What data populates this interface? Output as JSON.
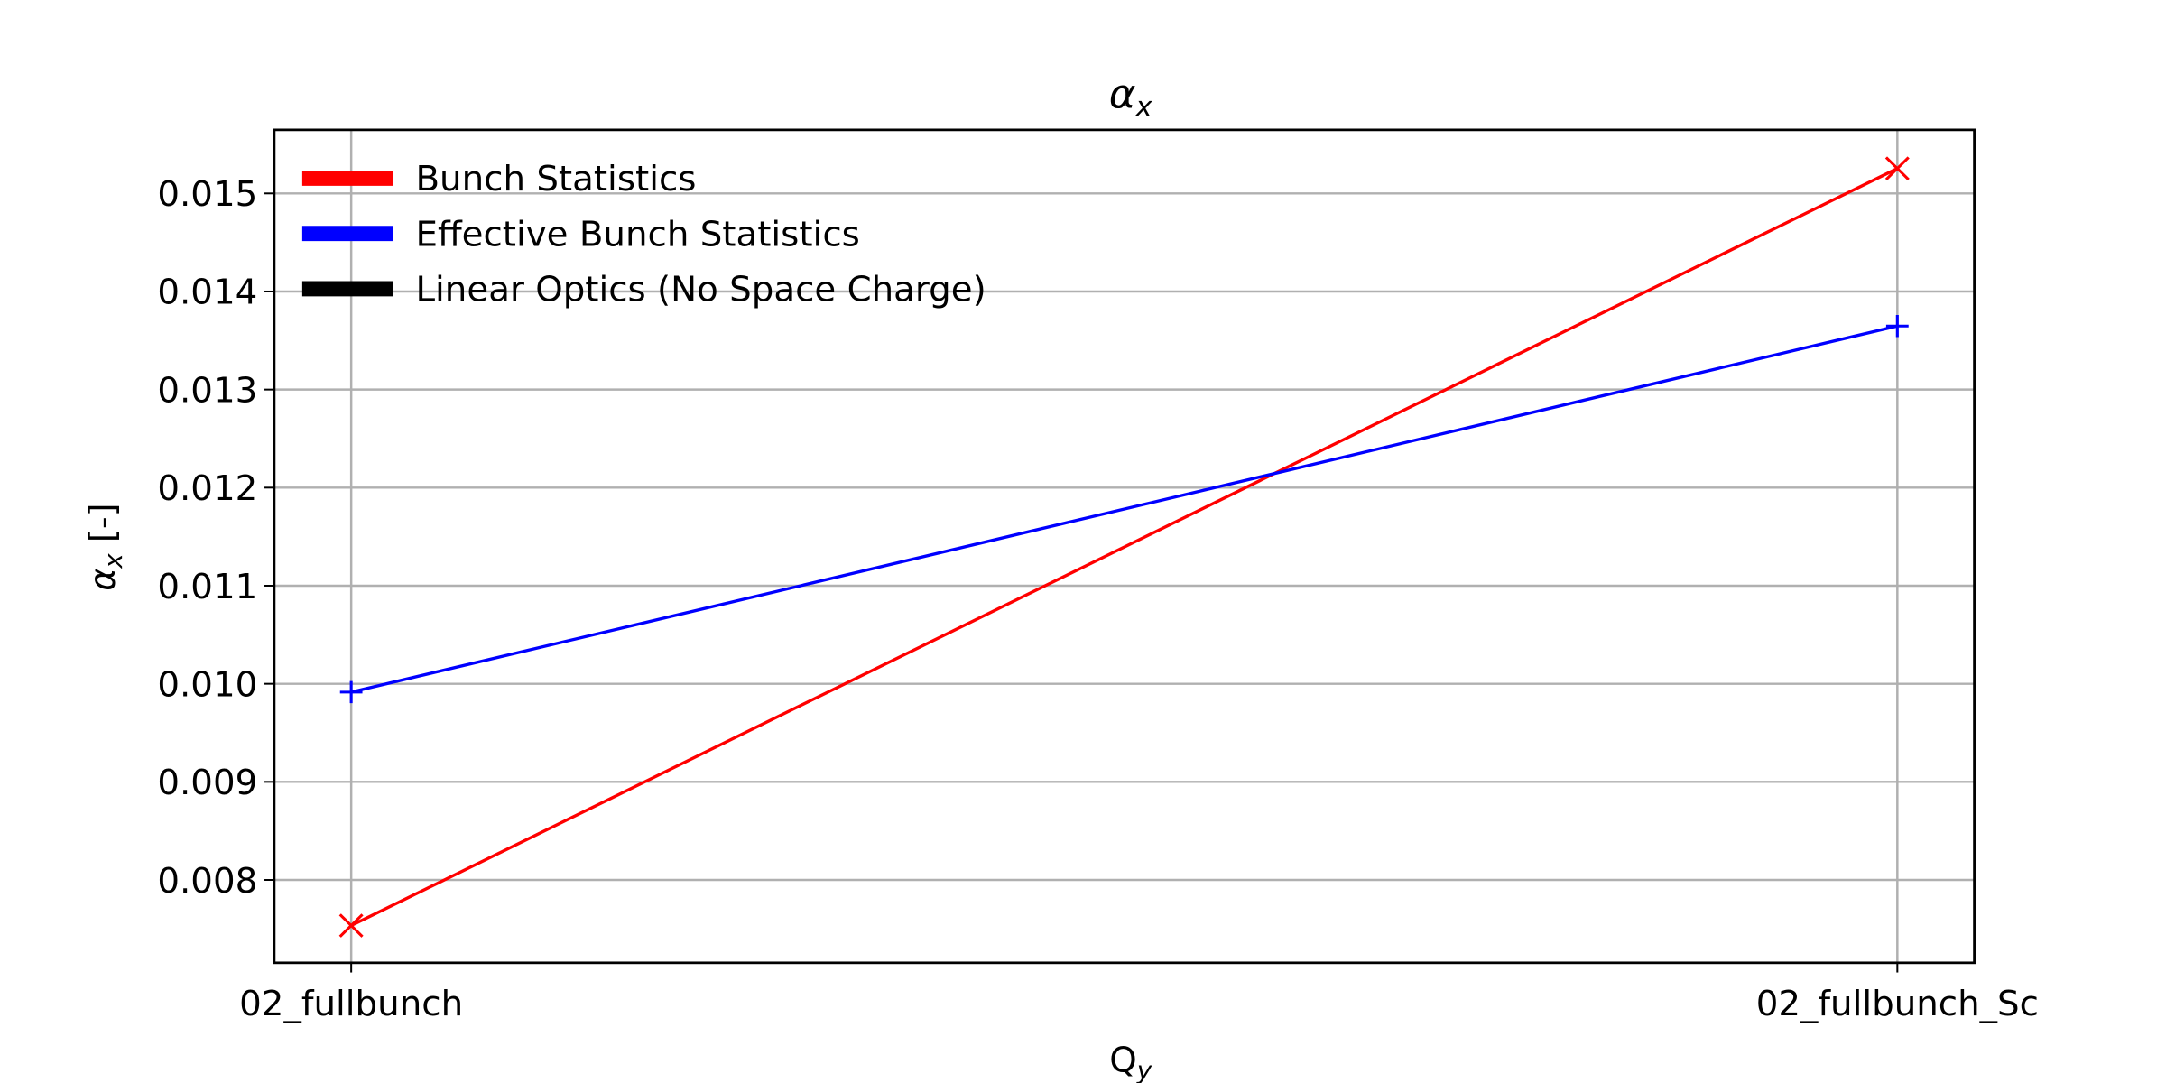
{
  "chart_data": {
    "type": "line",
    "title": {
      "text": "α",
      "sub": "x"
    },
    "ylabel": {
      "text": "α",
      "sub": "x",
      "suffix": " [-]"
    },
    "xlabel": {
      "text": "Q",
      "sub": "y"
    },
    "categories": [
      "02_fullbunch",
      "02_fullbunch_Sc"
    ],
    "series": [
      {
        "name": "Bunch Statistics",
        "color": "#ff0000",
        "marker": "x",
        "values": [
          0.007535,
          0.015254
        ]
      },
      {
        "name": "Effective Bunch Statistics",
        "color": "#0000ff",
        "marker": "+",
        "values": [
          0.009915,
          0.013648
        ]
      },
      {
        "name": "Linear Optics (No Space Charge)",
        "color": "#000000",
        "marker": "none",
        "values": [
          null,
          null
        ]
      }
    ],
    "ylim": [
      0.007155,
      0.015648
    ],
    "yticks": [
      0.008,
      0.009,
      {
        "value": 0.01,
        "label": "0.010"
      },
      0.011,
      0.012,
      0.013,
      0.014,
      0.015
    ],
    "grid": true,
    "legend": "upper left"
  }
}
